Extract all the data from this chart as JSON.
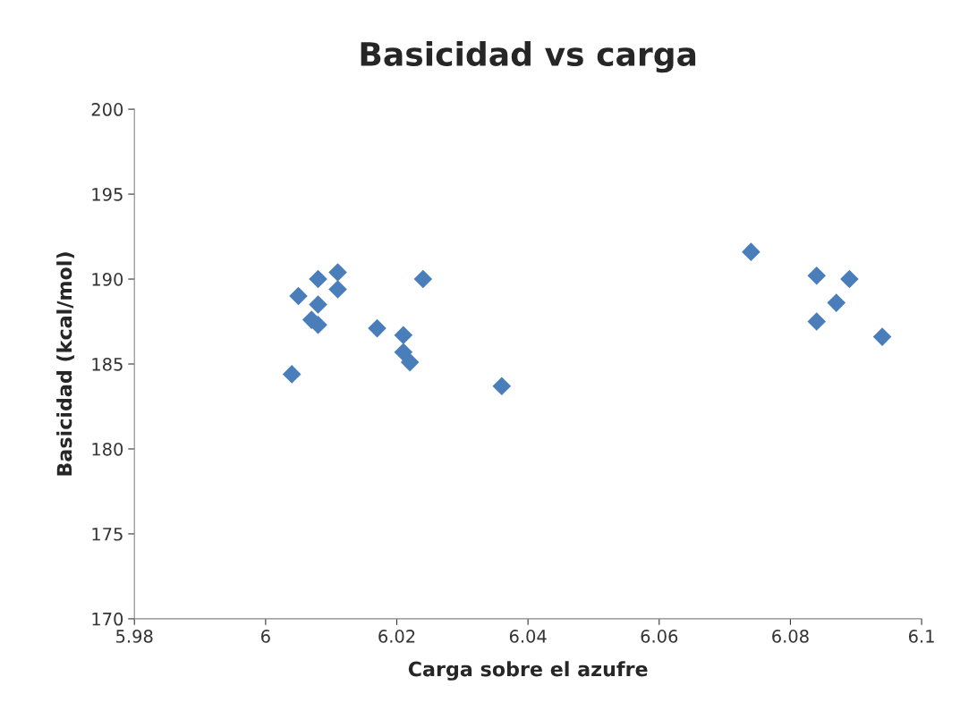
{
  "chart_data": {
    "type": "scatter",
    "title": "Basicidad vs carga",
    "xlabel": "Carga sobre el azufre",
    "ylabel": "Basicidad (kcal/mol)",
    "x": [
      6.004,
      6.005,
      6.007,
      6.008,
      6.008,
      6.008,
      6.011,
      6.011,
      6.017,
      6.021,
      6.021,
      6.022,
      6.024,
      6.036,
      6.074,
      6.084,
      6.084,
      6.087,
      6.089,
      6.094
    ],
    "values": [
      184.4,
      189.0,
      187.6,
      190.0,
      188.5,
      187.3,
      190.4,
      189.4,
      187.1,
      186.7,
      185.7,
      185.1,
      190.0,
      183.7,
      191.6,
      190.2,
      187.5,
      188.6,
      190.0,
      186.6
    ],
    "color": "#4a7ebb",
    "marker": "diamond",
    "grid": false,
    "legend": false,
    "xlim": [
      5.98,
      6.1
    ],
    "xticks": [
      5.98,
      6,
      6.02,
      6.04,
      6.06,
      6.08,
      6.1
    ],
    "ylim": [
      170,
      200
    ],
    "yticks": [
      170,
      175,
      180,
      185,
      190,
      195,
      200
    ]
  }
}
